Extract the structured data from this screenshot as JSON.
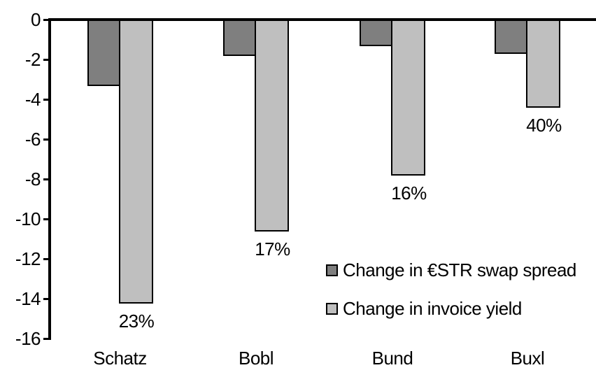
{
  "chart_data": {
    "type": "bar",
    "categories": [
      "Schatz",
      "Bobl",
      "Bund",
      "Buxl"
    ],
    "series": [
      {
        "name": "Change in €STR swap spread",
        "color": "#7F7F7F",
        "values": [
          -3.3,
          -1.8,
          -1.3,
          -1.7
        ]
      },
      {
        "name": "Change in invoice yield",
        "color": "#BFBFBF",
        "values": [
          -14.2,
          -10.6,
          -7.8,
          -4.4
        ],
        "labels": [
          "23%",
          "17%",
          "16%",
          "40%"
        ]
      }
    ],
    "title": "",
    "xlabel": "",
    "ylabel": "",
    "ylim": [
      -16,
      0
    ],
    "yticks": [
      "0",
      "-2",
      "-4",
      "-6",
      "-8",
      "-10",
      "-12",
      "-14",
      "-16"
    ],
    "grid": false,
    "legend_position": "inside-right",
    "bar_border_color": "#000000",
    "background_color": "#FFFFFF",
    "text_color": "#000000"
  }
}
